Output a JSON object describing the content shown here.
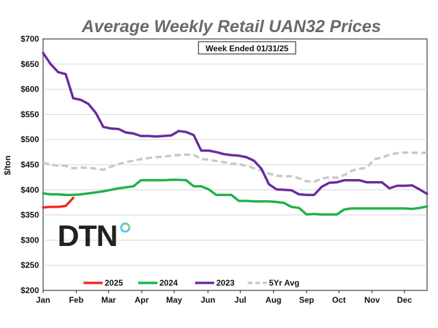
{
  "chart_data": {
    "type": "line",
    "title": "Average Weekly Retail UAN32 Prices",
    "annotation": "Week Ended 01/31/25",
    "ylabel": "$/ton",
    "xlabel": "",
    "ylim": [
      200,
      700
    ],
    "yticks": [
      "$200",
      "$250",
      "$300",
      "$350",
      "$400",
      "$450",
      "$500",
      "$550",
      "$600",
      "$650",
      "$700"
    ],
    "ytick_values": [
      200,
      250,
      300,
      350,
      400,
      450,
      500,
      550,
      600,
      650,
      700
    ],
    "xlim": [
      1,
      52
    ],
    "months": [
      "Jan",
      "Feb",
      "Mar",
      "Apr",
      "May",
      "Jun",
      "Jul",
      "Aug",
      "Sep",
      "Oct",
      "Nov",
      "Dec"
    ],
    "month_weeks": [
      1,
      5.4,
      9.7,
      14.1,
      18.4,
      22.9,
      27.2,
      31.6,
      36,
      40.3,
      44.7,
      49
    ],
    "legend_position": "bottom",
    "logo": "DTN",
    "series": [
      {
        "name": "2025",
        "color": "#ee2a24",
        "dash": "",
        "x": [
          1,
          2,
          3,
          4,
          5
        ],
        "values": [
          365,
          366,
          366,
          368,
          384
        ]
      },
      {
        "name": "2024",
        "color": "#1fb24a",
        "dash": "",
        "x": [
          1,
          2,
          3,
          4,
          5,
          6,
          7,
          8,
          9,
          10,
          11,
          12,
          13,
          14,
          15,
          16,
          17,
          18,
          19,
          20,
          21,
          22,
          23,
          24,
          25,
          26,
          27,
          28,
          29,
          30,
          31,
          32,
          33,
          34,
          35,
          36,
          37,
          38,
          39,
          40,
          41,
          42,
          43,
          44,
          45,
          46,
          47,
          48,
          49,
          50,
          51,
          52
        ],
        "values": [
          393,
          391,
          391,
          390,
          390,
          391,
          393,
          395,
          397,
          400,
          403,
          405,
          407,
          419,
          419,
          419,
          419,
          420,
          420,
          419,
          407,
          407,
          401,
          390,
          390,
          390,
          378,
          378,
          377,
          377,
          377,
          376,
          374,
          366,
          364,
          351,
          352,
          351,
          351,
          351,
          361,
          363,
          363,
          363,
          363,
          363,
          363,
          363,
          363,
          362,
          364,
          367
        ]
      },
      {
        "name": "2023",
        "color": "#6a2aa2",
        "dash": "",
        "x": [
          1,
          2,
          3,
          4,
          5,
          6,
          7,
          8,
          9,
          10,
          11,
          12,
          13,
          14,
          15,
          16,
          17,
          18,
          19,
          20,
          21,
          22,
          23,
          24,
          25,
          26,
          27,
          28,
          29,
          30,
          31,
          32,
          33,
          34,
          35,
          36,
          37,
          38,
          39,
          40,
          41,
          42,
          43,
          44,
          45,
          46,
          47,
          48,
          49,
          50,
          51,
          52
        ],
        "values": [
          672,
          650,
          634,
          630,
          582,
          579,
          571,
          553,
          525,
          522,
          521,
          514,
          512,
          507,
          507,
          506,
          507,
          508,
          517,
          515,
          509,
          478,
          478,
          475,
          471,
          469,
          468,
          465,
          458,
          442,
          411,
          401,
          400,
          399,
          391,
          390,
          390,
          406,
          414,
          415,
          419,
          419,
          419,
          415,
          415,
          415,
          403,
          408,
          408,
          409,
          401,
          392
        ]
      },
      {
        "name": "5Yr Avg",
        "color": "#c8c8c8",
        "dash": "9 5",
        "x": [
          1,
          2,
          3,
          4,
          5,
          6,
          7,
          8,
          9,
          10,
          11,
          12,
          13,
          14,
          15,
          16,
          17,
          18,
          19,
          20,
          21,
          22,
          23,
          24,
          25,
          26,
          27,
          28,
          29,
          30,
          31,
          32,
          33,
          34,
          35,
          36,
          37,
          38,
          39,
          40,
          41,
          42,
          43,
          44,
          45,
          46,
          47,
          48,
          49,
          50,
          51,
          52
        ],
        "values": [
          454,
          450,
          448,
          448,
          443,
          444,
          444,
          442,
          440,
          446,
          451,
          455,
          458,
          461,
          463,
          465,
          466,
          468,
          469,
          470,
          470,
          461,
          460,
          457,
          455,
          452,
          451,
          448,
          443,
          438,
          432,
          428,
          427,
          427,
          423,
          417,
          416,
          422,
          425,
          424,
          429,
          438,
          442,
          444,
          461,
          464,
          470,
          473,
          474,
          474,
          473,
          474
        ]
      }
    ]
  }
}
